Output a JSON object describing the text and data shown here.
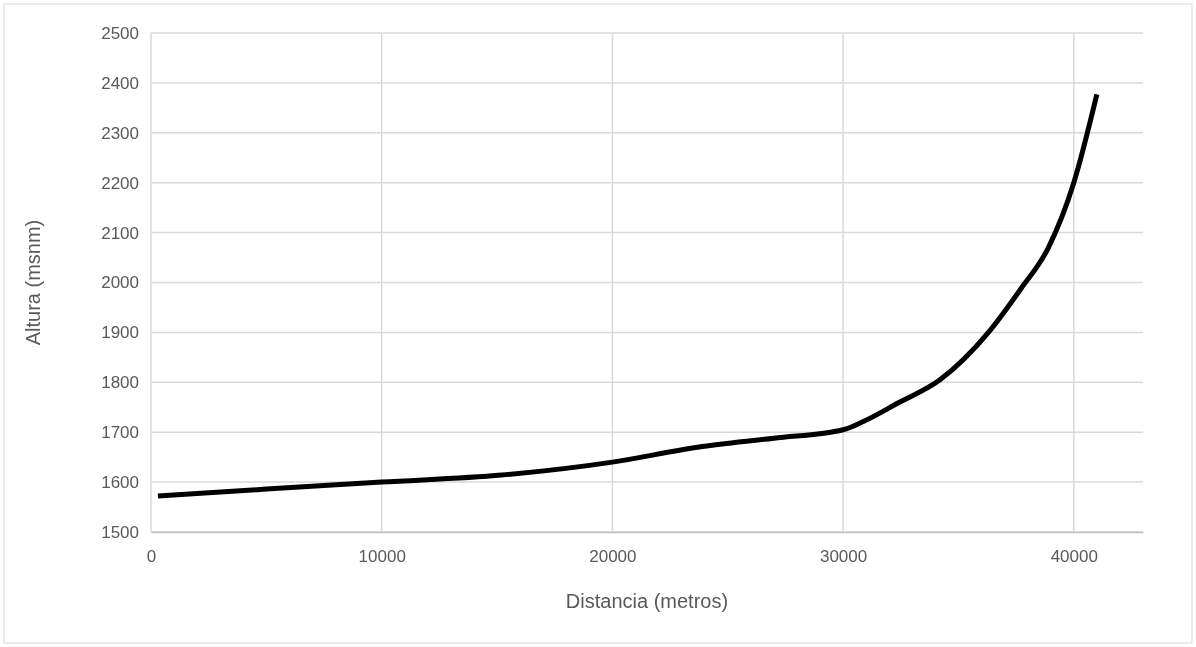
{
  "chart_data": {
    "type": "line",
    "xlabel": "Distancia (metros)",
    "ylabel": "Altura (msnm)",
    "x": [
      300,
      5000,
      10000,
      15200,
      20000,
      23700,
      27000,
      30000,
      30900,
      32400,
      34200,
      36300,
      37700,
      38900,
      40000,
      41000
    ],
    "series": [
      {
        "color": "#000000",
        "values": [
          1572,
          1586,
          1600,
          1614,
          1640,
          1670,
          1688,
          1705,
          1722,
          1759,
          1805,
          1900,
          1987,
          2070,
          2200,
          2377
        ]
      }
    ],
    "xlim": [
      0,
      43000
    ],
    "xticks": [
      0,
      10000,
      20000,
      30000,
      40000
    ],
    "ylim": [
      1500,
      2500
    ],
    "yticks": [
      1500,
      1600,
      1700,
      1800,
      1900,
      2000,
      2100,
      2200,
      2300,
      2400,
      2500
    ],
    "grid": true,
    "marker": "none",
    "line_style": "solid"
  }
}
